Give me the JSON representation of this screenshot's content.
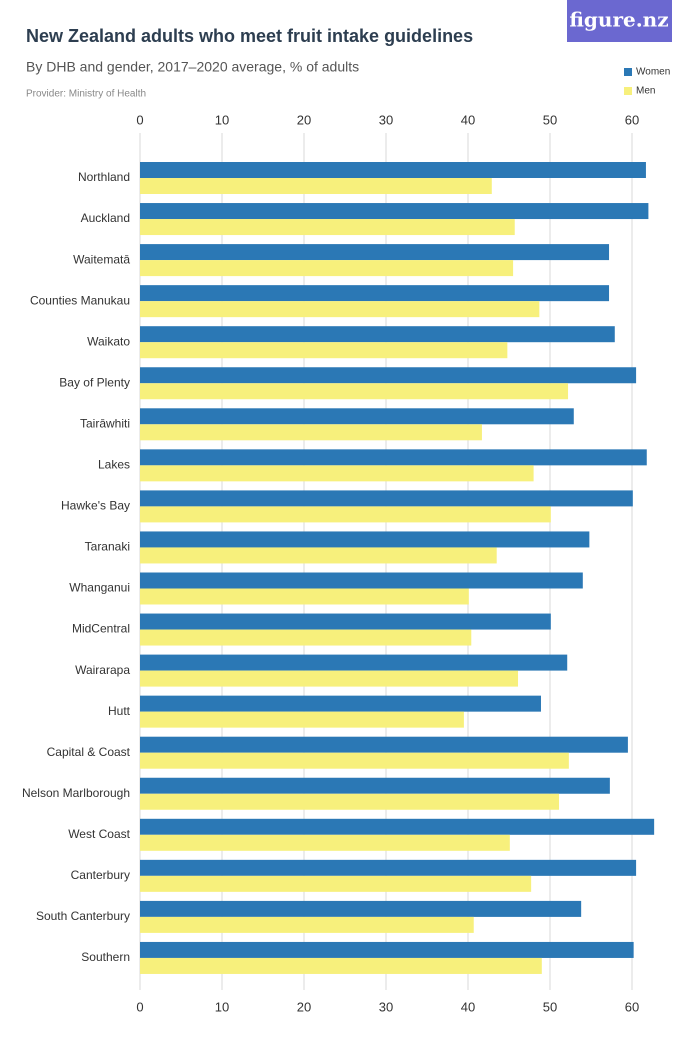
{
  "logo": "figure.nz",
  "chart_data": {
    "type": "hbar",
    "title": "New Zealand adults who meet fruit intake guidelines",
    "subtitle": "By DHB and gender, 2017–2020 average, % of adults",
    "provider": "Provider: Ministry of Health",
    "categories": [
      "Northland",
      "Auckland",
      "Waitematā",
      "Counties Manukau",
      "Waikato",
      "Bay of Plenty",
      "Tairāwhiti",
      "Lakes",
      "Hawke's Bay",
      "Taranaki",
      "Whanganui",
      "MidCentral",
      "Wairarapa",
      "Hutt",
      "Capital & Coast",
      "Nelson Marlborough",
      "West Coast",
      "Canterbury",
      "South Canterbury",
      "Southern"
    ],
    "series": [
      {
        "name": "Women",
        "color": "#2b78b5",
        "values": [
          61.7,
          62.0,
          57.2,
          57.2,
          57.9,
          60.5,
          52.9,
          61.8,
          60.1,
          54.8,
          54.0,
          50.1,
          52.1,
          48.9,
          59.5,
          57.3,
          62.7,
          60.5,
          53.8,
          60.2
        ]
      },
      {
        "name": "Men",
        "color": "#f7f07c",
        "values": [
          42.9,
          45.7,
          45.5,
          48.7,
          44.8,
          52.2,
          41.7,
          48.0,
          50.1,
          43.5,
          40.1,
          40.4,
          46.1,
          39.5,
          52.3,
          51.1,
          45.1,
          47.7,
          40.7,
          49.0
        ]
      }
    ],
    "xlim": [
      0,
      65
    ],
    "xticks": [
      0,
      10,
      20,
      30,
      40,
      50,
      60
    ],
    "grid": true,
    "legend": "top-right"
  }
}
